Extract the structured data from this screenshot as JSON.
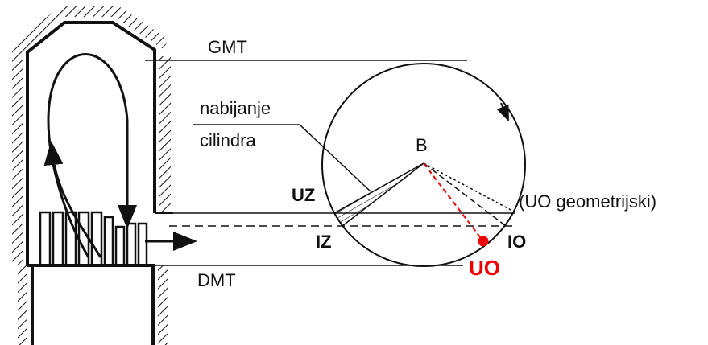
{
  "labels": {
    "gmt": "GMT",
    "nabijanje": "nabijanje",
    "cilindra": "cilindra",
    "b": "B",
    "uz": "UZ",
    "uo_geo": "(UO geometrijski)",
    "iz": "IZ",
    "io": "IO",
    "uo": "UO",
    "dmt": "DMT"
  }
}
